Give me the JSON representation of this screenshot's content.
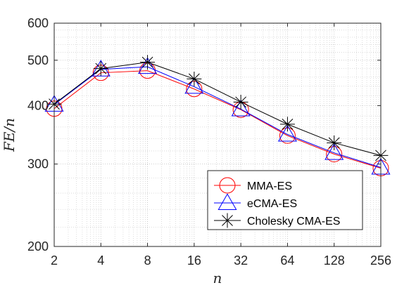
{
  "chart_data": {
    "type": "line",
    "title": "",
    "xlabel": "n",
    "ylabel": "FE/n",
    "x_scale": "log2",
    "y_scale": "log",
    "x": [
      2,
      4,
      8,
      16,
      32,
      64,
      128,
      256
    ],
    "x_tick_labels": [
      "2",
      "4",
      "8",
      "16",
      "32",
      "64",
      "128",
      "256"
    ],
    "xlim": [
      2,
      256
    ],
    "y_ticks": [
      200,
      300,
      400,
      500,
      600
    ],
    "y_tick_labels": [
      "200",
      "300",
      "400",
      "500",
      "600"
    ],
    "ylim": [
      200,
      600
    ],
    "grid": true,
    "minor_grid": true,
    "legend_position": "bottom-right",
    "series": [
      {
        "name": "MMA-ES",
        "color": "#ff0000",
        "marker": "circle",
        "values": [
          394,
          470,
          475,
          434,
          392,
          345,
          315,
          294
        ]
      },
      {
        "name": "eCMA-ES",
        "color": "#0000ff",
        "marker": "triangle",
        "values": [
          402,
          478,
          484,
          439,
          393,
          347,
          317,
          295
        ]
      },
      {
        "name": "Cholesky CMA-ES",
        "color": "#000000",
        "marker": "asterisk",
        "values": [
          403,
          480,
          495,
          456,
          407,
          365,
          333,
          313
        ]
      }
    ]
  }
}
